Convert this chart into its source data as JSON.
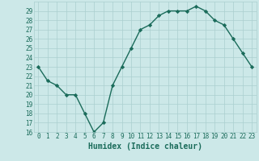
{
  "x": [
    0,
    1,
    2,
    3,
    4,
    5,
    6,
    7,
    8,
    9,
    10,
    11,
    12,
    13,
    14,
    15,
    16,
    17,
    18,
    19,
    20,
    21,
    22,
    23
  ],
  "y": [
    23,
    21.5,
    21,
    20,
    20,
    18,
    16,
    17,
    21,
    23,
    25,
    27,
    27.5,
    28.5,
    29,
    29,
    29,
    29.5,
    29,
    28,
    27.5,
    26,
    24.5,
    23
  ],
  "line_color": "#1a6b5a",
  "marker": "D",
  "markersize": 2.2,
  "linewidth": 1.0,
  "bg_color": "#cce8e8",
  "grid_color": "#aacfcf",
  "xlabel": "Humidex (Indice chaleur)",
  "ylabel": "",
  "ylim": [
    16,
    30
  ],
  "xlim": [
    -0.5,
    23.5
  ],
  "yticks": [
    16,
    17,
    18,
    19,
    20,
    21,
    22,
    23,
    24,
    25,
    26,
    27,
    28,
    29
  ],
  "xticks": [
    0,
    1,
    2,
    3,
    4,
    5,
    6,
    7,
    8,
    9,
    10,
    11,
    12,
    13,
    14,
    15,
    16,
    17,
    18,
    19,
    20,
    21,
    22,
    23
  ],
  "xtick_labels": [
    "0",
    "1",
    "2",
    "3",
    "4",
    "5",
    "6",
    "7",
    "8",
    "9",
    "10",
    "11",
    "12",
    "13",
    "14",
    "15",
    "16",
    "17",
    "18",
    "19",
    "20",
    "21",
    "22",
    "23"
  ],
  "tick_color": "#1a6b5a",
  "tick_fontsize": 5.5,
  "xlabel_fontsize": 7,
  "xlabel_color": "#1a6b5a",
  "xlabel_fontweight": "bold"
}
